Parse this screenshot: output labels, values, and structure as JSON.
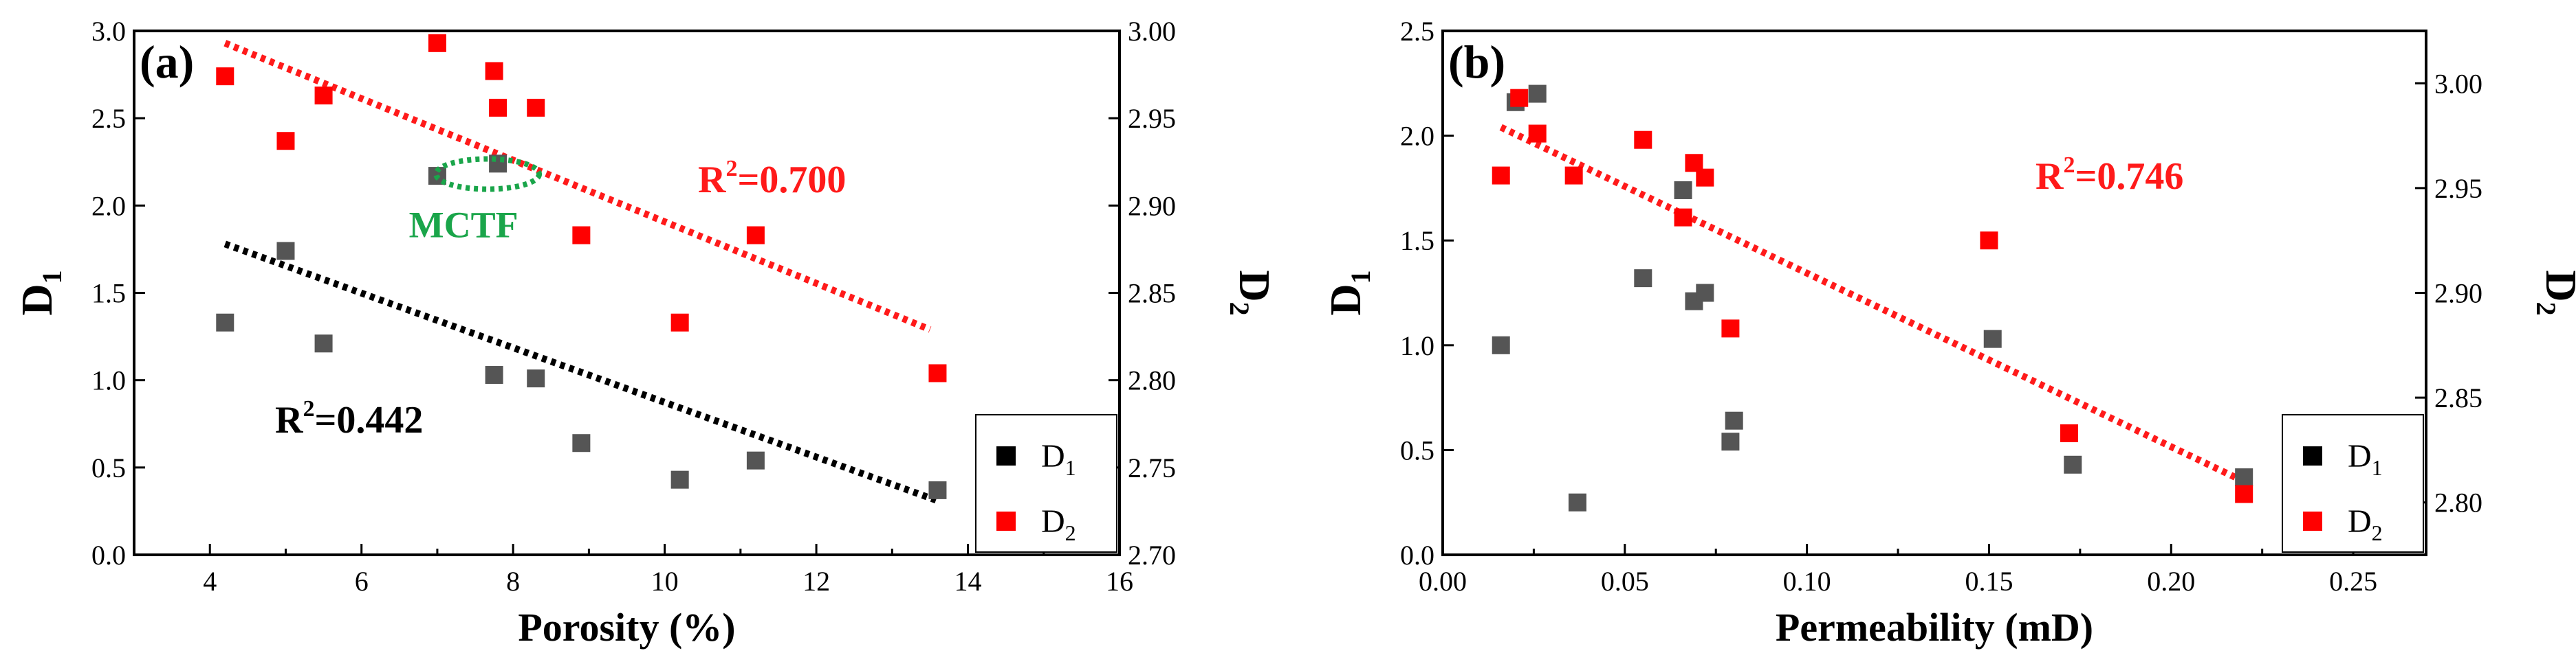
{
  "colors": {
    "d1": "#555555",
    "d2": "#ff0000",
    "fit_d1": "#000000",
    "fit_d2": "#ff1a1a",
    "mctf": "#1aa54a",
    "axis": "#000000"
  },
  "legend": {
    "d1_label": "D",
    "d1_sub": "1",
    "d2_label": "D",
    "d2_sub": "2",
    "placement": "bottom-right"
  },
  "chart_data": [
    {
      "type": "scatter",
      "panel_label": "(a)",
      "xlabel": "Porosity (%)",
      "ylabel_left": {
        "base": "D",
        "sub": "1"
      },
      "ylabel_right": {
        "base": "D",
        "sub": "2"
      },
      "xlim": [
        3,
        16
      ],
      "ylim_left": [
        0,
        3
      ],
      "ylim_right": [
        2.7,
        3.0
      ],
      "xticks": [
        "4",
        "6",
        "8",
        "10",
        "12",
        "14",
        "16"
      ],
      "yticks_left": [
        "0.0",
        "0.5",
        "1.0",
        "1.5",
        "2.0",
        "2.5",
        "3.0"
      ],
      "yticks_right": [
        "2.70",
        "2.75",
        "2.80",
        "2.85",
        "2.90",
        "2.95",
        "3.00"
      ],
      "grid": false,
      "series": [
        {
          "name": "D1",
          "axis": "left",
          "x": [
            4.2,
            5.0,
            5.5,
            7.0,
            7.75,
            8.3,
            8.9,
            10.2,
            11.2,
            13.6
          ],
          "y": [
            1.33,
            1.74,
            1.21,
            2.17,
            1.03,
            1.01,
            0.64,
            0.43,
            0.54,
            0.37
          ]
        },
        {
          "name": "D2",
          "axis": "right",
          "x": [
            4.2,
            5.0,
            5.5,
            7.0,
            7.75,
            7.8,
            8.3,
            8.9,
            10.2,
            11.2,
            13.6
          ],
          "y": [
            2.974,
            2.937,
            2.963,
            2.993,
            2.977,
            2.956,
            2.956,
            2.883,
            2.833,
            2.883,
            2.804
          ]
        },
        {
          "name": "MCTF point",
          "axis": "left",
          "color": "d1",
          "x": [
            7.8
          ],
          "y": [
            2.24
          ]
        }
      ],
      "fits": [
        {
          "series": "D1",
          "axis": "left",
          "x": [
            4.2,
            13.6
          ],
          "y": [
            1.78,
            0.31
          ],
          "label_base": "R",
          "label_sup": "2",
          "label_value": "=0.442",
          "color": "fit_d1"
        },
        {
          "series": "D2",
          "axis": "right",
          "x": [
            4.2,
            13.5
          ],
          "y": [
            2.993,
            2.829
          ],
          "label_base": "R",
          "label_sup": "2",
          "label_value": "=0.700",
          "color": "fit_d2"
        }
      ],
      "annotation": {
        "text": "MCTF",
        "x": 7.8,
        "y": 2.2
      }
    },
    {
      "type": "scatter",
      "panel_label": "(b)",
      "xlabel": "Permeability (mD)",
      "ylabel_left": {
        "base": "D",
        "sub": "1"
      },
      "ylabel_right": {
        "base": "D",
        "sub": "2"
      },
      "xlim": [
        0,
        0.27
      ],
      "ylim_left": [
        0,
        2.5
      ],
      "ylim_right": [
        2.775,
        3.025
      ],
      "xticks": [
        "0.00",
        "0.05",
        "0.10",
        "0.15",
        "0.20",
        "0.25"
      ],
      "yticks_left": [
        "0.0",
        "0.5",
        "1.0",
        "1.5",
        "2.0",
        "2.5"
      ],
      "yticks_right": [
        "2.80",
        "2.85",
        "2.90",
        "2.95",
        "3.00"
      ],
      "grid": false,
      "series": [
        {
          "name": "D1",
          "axis": "left",
          "x": [
            0.016,
            0.02,
            0.026,
            0.037,
            0.055,
            0.066,
            0.069,
            0.072,
            0.079,
            0.08,
            0.151,
            0.173,
            0.22
          ],
          "y": [
            1.0,
            2.16,
            2.2,
            0.25,
            1.32,
            1.74,
            1.21,
            1.25,
            0.54,
            0.64,
            1.03,
            0.43,
            0.37
          ]
        },
        {
          "name": "D2",
          "axis": "right",
          "x": [
            0.016,
            0.021,
            0.026,
            0.036,
            0.055,
            0.066,
            0.069,
            0.072,
            0.079,
            0.15,
            0.172,
            0.22
          ],
          "y": [
            2.956,
            2.993,
            2.976,
            2.956,
            2.973,
            2.936,
            2.962,
            2.955,
            2.883,
            2.925,
            2.833,
            2.804
          ]
        }
      ],
      "fits": [
        {
          "series": "D2",
          "axis": "right",
          "x": [
            0.016,
            0.22
          ],
          "y": [
            2.979,
            2.81
          ],
          "label_base": "R",
          "label_sup": "2",
          "label_value": "=0.746",
          "color": "fit_d2"
        }
      ]
    }
  ]
}
